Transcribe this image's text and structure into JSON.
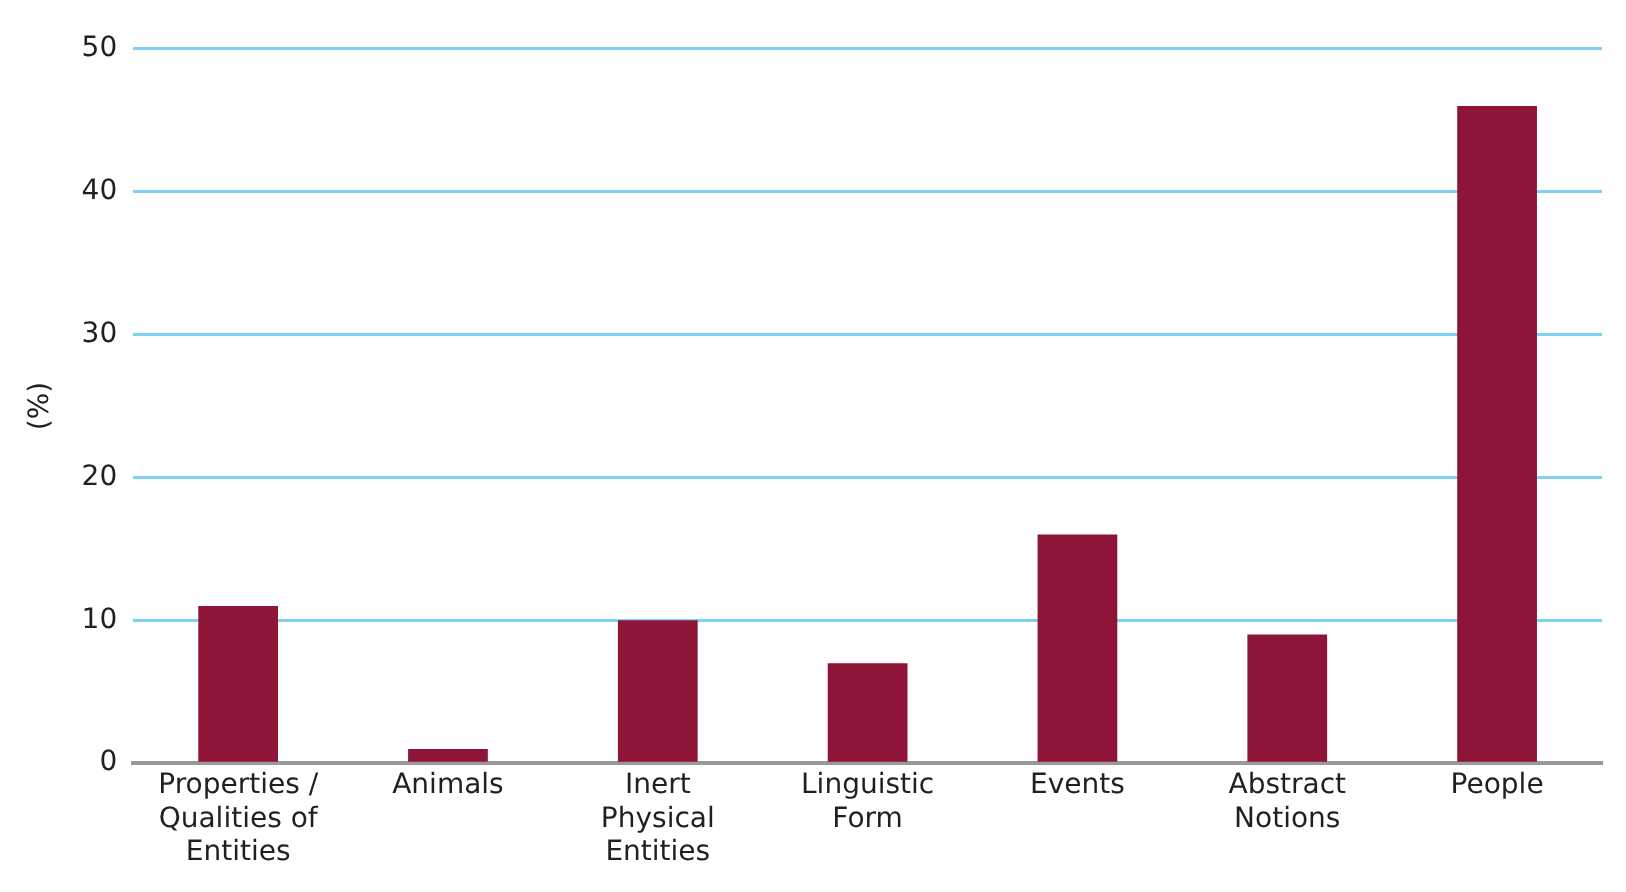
{
  "chart_data": {
    "type": "bar",
    "ylabel": "(%)",
    "categories": [
      "Properties / Qualities of Entities",
      "Animals",
      "Inert Physical Entities",
      "Linguistic Form",
      "Events",
      "Abstract Notions",
      "People"
    ],
    "values": [
      11,
      1,
      10,
      7,
      16,
      9,
      46
    ],
    "color": "#8e1538",
    "ylim": [
      0,
      50
    ],
    "yticks": [
      0,
      10,
      20,
      30,
      40,
      50
    ],
    "grid": "y",
    "legend": false
  }
}
